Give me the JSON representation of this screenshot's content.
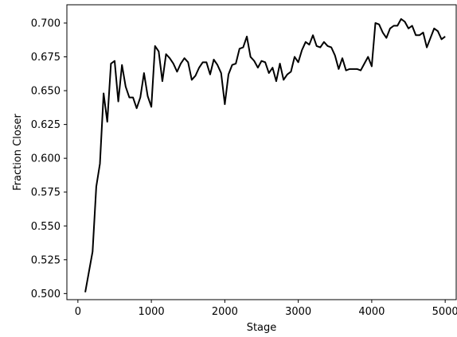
{
  "chart_data": {
    "type": "line",
    "title": "",
    "xlabel": "Stage",
    "ylabel": "Fraction Closer",
    "xlim": [
      -150,
      5150
    ],
    "ylim": [
      0.4955,
      0.7135
    ],
    "xticks": [
      0,
      1000,
      2000,
      3000,
      4000,
      5000
    ],
    "xtick_labels": [
      "0",
      "1000",
      "2000",
      "3000",
      "4000",
      "5000"
    ],
    "yticks": [
      0.5,
      0.525,
      0.55,
      0.575,
      0.6,
      0.625,
      0.65,
      0.675,
      0.7
    ],
    "ytick_labels": [
      "0.500",
      "0.525",
      "0.550",
      "0.575",
      "0.600",
      "0.625",
      "0.650",
      "0.675",
      "0.700"
    ],
    "grid": false,
    "legend": "none",
    "line_color": "#000000",
    "series": [
      {
        "x": [
          100,
          150,
          200,
          250,
          300,
          350,
          400,
          450,
          500,
          550,
          600,
          650,
          700,
          750,
          800,
          850,
          900,
          950,
          1000,
          1050,
          1100,
          1150,
          1200,
          1250,
          1300,
          1350,
          1400,
          1450,
          1500,
          1550,
          1600,
          1650,
          1700,
          1750,
          1800,
          1850,
          1900,
          1950,
          2000,
          2050,
          2100,
          2150,
          2200,
          2250,
          2300,
          2350,
          2400,
          2450,
          2500,
          2550,
          2600,
          2650,
          2700,
          2750,
          2800,
          2850,
          2900,
          2950,
          3000,
          3050,
          3100,
          3150,
          3200,
          3250,
          3300,
          3350,
          3400,
          3450,
          3500,
          3550,
          3600,
          3650,
          3700,
          3750,
          3800,
          3850,
          3900,
          3950,
          4000,
          4050,
          4100,
          4150,
          4200,
          4250,
          4300,
          4350,
          4400,
          4450,
          4500,
          4550,
          4600,
          4650,
          4700,
          4750,
          4800,
          4850,
          4900,
          4950,
          5000
        ],
        "values": [
          0.501,
          0.516,
          0.531,
          0.579,
          0.596,
          0.648,
          0.627,
          0.67,
          0.672,
          0.642,
          0.669,
          0.653,
          0.645,
          0.645,
          0.637,
          0.645,
          0.663,
          0.646,
          0.638,
          0.683,
          0.679,
          0.657,
          0.677,
          0.674,
          0.67,
          0.664,
          0.67,
          0.674,
          0.671,
          0.658,
          0.661,
          0.667,
          0.671,
          0.671,
          0.662,
          0.673,
          0.669,
          0.663,
          0.64,
          0.662,
          0.669,
          0.67,
          0.681,
          0.682,
          0.69,
          0.675,
          0.672,
          0.667,
          0.672,
          0.671,
          0.663,
          0.667,
          0.657,
          0.67,
          0.658,
          0.662,
          0.664,
          0.675,
          0.671,
          0.68,
          0.686,
          0.684,
          0.691,
          0.683,
          0.682,
          0.686,
          0.683,
          0.682,
          0.676,
          0.666,
          0.674,
          0.665,
          0.666,
          0.666,
          0.666,
          0.665,
          0.67,
          0.675,
          0.668,
          0.7,
          0.699,
          0.693,
          0.689,
          0.696,
          0.698,
          0.698,
          0.703,
          0.701,
          0.696,
          0.698,
          0.691,
          0.691,
          0.693,
          0.682,
          0.689,
          0.696,
          0.694,
          0.688,
          0.69
        ]
      }
    ]
  }
}
